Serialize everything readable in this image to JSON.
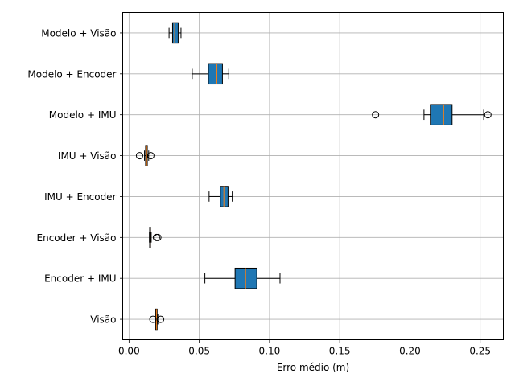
{
  "chart_data": {
    "type": "boxplot",
    "orientation": "horizontal",
    "title": "",
    "xlabel": "Erro médio (m)",
    "ylabel": "",
    "xlim": [
      -0.0045,
      0.2665
    ],
    "xticks": [
      0.0,
      0.05,
      0.1,
      0.15,
      0.2,
      0.25
    ],
    "xtick_labels": [
      "0.00",
      "0.05",
      "0.10",
      "0.15",
      "0.20",
      "0.25"
    ],
    "grid": true,
    "colors": {
      "box_fill": "#1f77b4",
      "median": "#ff7f0e",
      "grid": "#b0b0b0"
    },
    "categories": [
      "Visão",
      "Encoder + IMU",
      "Encoder + Visão",
      "IMU + Encoder",
      "IMU + Visão",
      "Modelo + IMU",
      "Modelo + Encoder",
      "Modelo + Visão"
    ],
    "boxes": [
      {
        "label": "Visão",
        "whislo": 0.0185,
        "q1": 0.019,
        "med": 0.0195,
        "q3": 0.02,
        "whishi": 0.0205,
        "fliers": [
          0.017,
          0.0225
        ]
      },
      {
        "label": "Encoder + IMU",
        "whislo": 0.054,
        "q1": 0.0755,
        "med": 0.083,
        "q3": 0.091,
        "whishi": 0.1075,
        "fliers": []
      },
      {
        "label": "Encoder + Visão",
        "whislo": 0.0145,
        "q1": 0.0147,
        "med": 0.015,
        "q3": 0.0153,
        "whishi": 0.0158,
        "fliers": [
          0.0195,
          0.0205
        ]
      },
      {
        "label": "IMU + Encoder",
        "whislo": 0.057,
        "q1": 0.065,
        "med": 0.0675,
        "q3": 0.0705,
        "whishi": 0.0735,
        "fliers": []
      },
      {
        "label": "IMU + Visão",
        "whislo": 0.011,
        "q1": 0.0118,
        "med": 0.0125,
        "q3": 0.013,
        "whishi": 0.014,
        "fliers": [
          0.0075,
          0.0155
        ]
      },
      {
        "label": "Modelo + IMU",
        "whislo": 0.21,
        "q1": 0.2145,
        "med": 0.224,
        "q3": 0.23,
        "whishi": 0.2525,
        "fliers": [
          0.1755,
          0.2555
        ]
      },
      {
        "label": "Modelo + Encoder",
        "whislo": 0.045,
        "q1": 0.0565,
        "med": 0.0625,
        "q3": 0.0665,
        "whishi": 0.071,
        "fliers": []
      },
      {
        "label": "Modelo + Visão",
        "whislo": 0.0285,
        "q1": 0.031,
        "med": 0.0325,
        "q3": 0.035,
        "whishi": 0.037,
        "fliers": []
      }
    ]
  }
}
